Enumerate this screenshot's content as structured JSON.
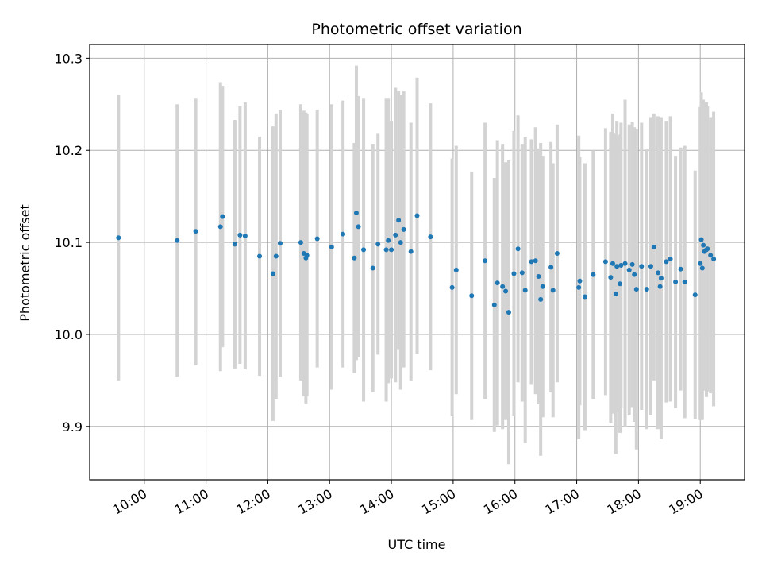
{
  "chart_data": {
    "type": "scatter",
    "title": "Photometric offset variation",
    "xlabel": "UTC time",
    "ylabel": "Photometric offset",
    "xlim": [
      "09:07",
      "19:43"
    ],
    "ylim": [
      9.842,
      10.315
    ],
    "x_ticks": [
      "10:00",
      "11:00",
      "12:00",
      "13:00",
      "14:00",
      "15:00",
      "16:00",
      "17:00",
      "18:00",
      "19:00"
    ],
    "y_ticks": [
      "9.9",
      "10.0",
      "10.1",
      "10.2",
      "10.3"
    ],
    "grid": true,
    "legend": "none",
    "colors": {
      "point": "#1f77b4",
      "errorbar": "#d3d3d3",
      "grid": "#b0b0b0",
      "axes": "#000000"
    },
    "series": [
      {
        "x": [
          "09:35",
          "10:32",
          "10:50",
          "11:14",
          "11:16",
          "11:28",
          "11:33",
          "11:38",
          "11:52",
          "12:05",
          "12:08",
          "12:12",
          "12:32",
          "12:35",
          "12:37",
          "12:38",
          "12:48",
          "13:02",
          "13:13",
          "13:24",
          "13:26",
          "13:28",
          "13:33",
          "13:42",
          "13:47",
          "13:55",
          "13:57",
          "14:00",
          "14:04",
          "14:07",
          "14:09",
          "14:12",
          "14:19",
          "14:25",
          "14:38",
          "14:59",
          "15:03",
          "15:18",
          "15:31",
          "15:40",
          "15:43",
          "15:48",
          "15:51",
          "15:54",
          "15:59",
          "16:03",
          "16:07",
          "16:10",
          "16:16",
          "16:20",
          "16:23",
          "16:25",
          "16:27",
          "16:35",
          "16:37",
          "16:41",
          "17:02",
          "17:03",
          "17:08",
          "17:16",
          "17:28",
          "17:33",
          "17:35",
          "17:38",
          "17:39",
          "17:42",
          "17:43",
          "17:47",
          "17:51",
          "17:54",
          "17:56",
          "17:58",
          "18:03",
          "18:08",
          "18:12",
          "18:15",
          "18:19",
          "18:21",
          "18:22",
          "18:27",
          "18:31",
          "18:36",
          "18:41",
          "18:45",
          "18:55",
          "19:00",
          "19:01",
          "19:02",
          "19:03",
          "19:04",
          "19:06",
          "19:07",
          "19:10",
          "19:13"
        ],
        "y": [
          10.105,
          10.102,
          10.112,
          10.117,
          10.128,
          10.098,
          10.108,
          10.107,
          10.085,
          10.066,
          10.085,
          10.099,
          10.1,
          10.088,
          10.083,
          10.086,
          10.104,
          10.095,
          10.109,
          10.083,
          10.132,
          10.117,
          10.092,
          10.072,
          10.098,
          10.092,
          10.102,
          10.092,
          10.108,
          10.124,
          10.1,
          10.114,
          10.09,
          10.129,
          10.106,
          10.051,
          10.07,
          10.042,
          10.08,
          10.032,
          10.056,
          10.052,
          10.047,
          10.024,
          10.066,
          10.093,
          10.067,
          10.048,
          10.079,
          10.08,
          10.063,
          10.038,
          10.052,
          10.073,
          10.048,
          10.088,
          10.051,
          10.058,
          10.041,
          10.065,
          10.079,
          10.062,
          10.077,
          10.044,
          10.074,
          10.055,
          10.075,
          10.077,
          10.07,
          10.076,
          10.065,
          10.049,
          10.074,
          10.049,
          10.074,
          10.095,
          10.067,
          10.052,
          10.061,
          10.079,
          10.082,
          10.057,
          10.071,
          10.057,
          10.043,
          10.077,
          10.103,
          10.072,
          10.097,
          10.09,
          10.092,
          10.093,
          10.086,
          10.082
        ],
        "yerr": [
          0.155,
          0.148,
          0.145,
          0.157,
          0.142,
          0.135,
          0.14,
          0.145,
          0.13,
          0.16,
          0.155,
          0.145,
          0.15,
          0.155,
          0.158,
          0.153,
          0.14,
          0.155,
          0.145,
          0.125,
          0.16,
          0.142,
          0.165,
          0.135,
          0.12,
          0.165,
          0.155,
          0.14,
          0.16,
          0.14,
          0.16,
          0.15,
          0.14,
          0.15,
          0.145,
          0.14,
          0.135,
          0.135,
          0.15,
          0.138,
          0.155,
          0.155,
          0.14,
          0.165,
          0.155,
          0.145,
          0.14,
          0.166,
          0.133,
          0.145,
          0.139,
          0.17,
          0.142,
          0.136,
          0.138,
          0.14,
          0.165,
          0.135,
          0.145,
          0.135,
          0.145,
          0.158,
          0.163,
          0.174,
          0.158,
          0.162,
          0.155,
          0.178,
          0.158,
          0.155,
          0.16,
          0.174,
          0.156,
          0.152,
          0.162,
          0.145,
          0.17,
          0.148,
          0.175,
          0.153,
          0.155,
          0.137,
          0.132,
          0.148,
          0.135,
          0.17,
          0.16,
          0.165,
          0.158,
          0.15,
          0.16,
          0.155,
          0.15,
          0.16
        ]
      }
    ]
  }
}
